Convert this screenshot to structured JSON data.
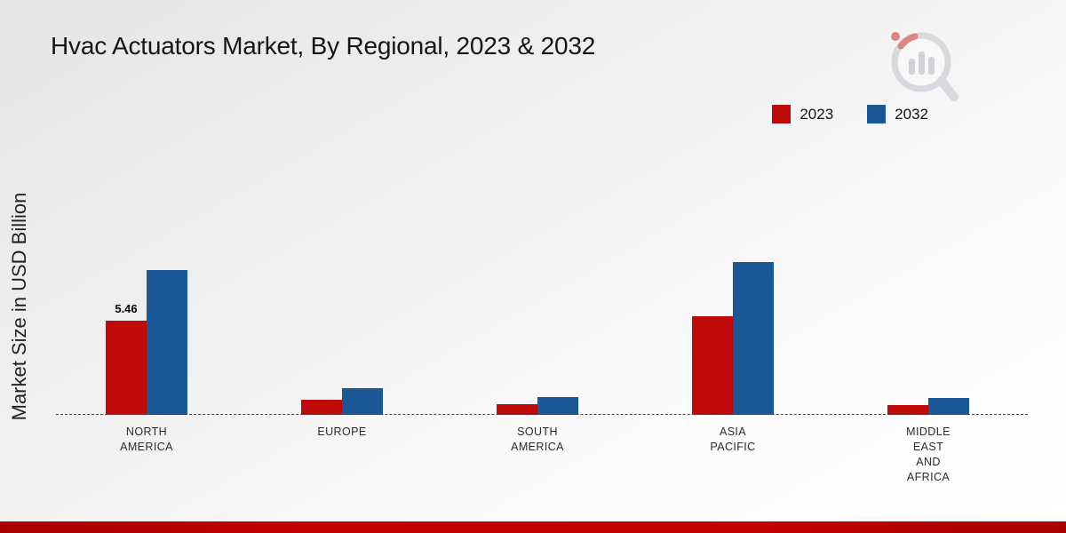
{
  "title": "Hvac Actuators Market, By Regional, 2023 & 2032",
  "ylabel": "Market Size in USD Billion",
  "legend": [
    {
      "label": "2023",
      "color": "#c00a0a"
    },
    {
      "label": "2032",
      "color": "#1a5796"
    }
  ],
  "footer_color": "#c30000",
  "chart_data": {
    "type": "bar",
    "title": "Hvac Actuators Market, By Regional, 2023 & 2032",
    "xlabel": "",
    "ylabel": "Market Size in USD Billion",
    "categories": [
      "North America",
      "Europe",
      "South America",
      "Asia Pacific",
      "Middle East and Africa"
    ],
    "category_label_lines": [
      [
        "NORTH",
        "AMERICA"
      ],
      [
        "EUROPE"
      ],
      [
        "SOUTH",
        "AMERICA"
      ],
      [
        "ASIA",
        "PACIFIC"
      ],
      [
        "MIDDLE",
        "EAST",
        "AND",
        "AFRICA"
      ]
    ],
    "series": [
      {
        "name": "2023",
        "color": "#c00a0a",
        "values": [
          5.46,
          0.9,
          0.6,
          5.75,
          0.55
        ]
      },
      {
        "name": "2032",
        "color": "#1a5796",
        "values": [
          8.4,
          1.55,
          1.05,
          8.85,
          1.0
        ]
      }
    ],
    "annotations": [
      {
        "category": "North America",
        "series": "2023",
        "text": "5.46"
      }
    ],
    "ylim": [
      0,
      9
    ],
    "grid": false,
    "baseline_style": "dashed",
    "legend_position": "top-right"
  }
}
